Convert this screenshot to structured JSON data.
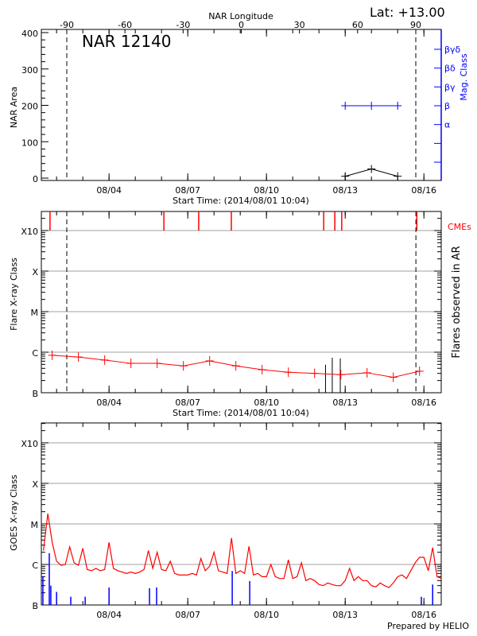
{
  "header": {
    "lat_label": "Lat: +13.00",
    "prepared_by": "Prepared by HELIO"
  },
  "colors": {
    "axis": "#000000",
    "grid": "#a0a0a0",
    "mag_class": "#0000ff",
    "flare_series": "#ff0000",
    "cme": "#ff0000",
    "goes_flux": "#ff0000",
    "goes_events": "#0000ff"
  },
  "chart_data": [
    {
      "type": "line",
      "title": "NAR 12140",
      "top_xlabel": "NAR Longitude",
      "top_xticks": [
        "-90",
        "-60",
        "-30",
        "0",
        "30",
        "60",
        "90"
      ],
      "ylabel": "NAR Area",
      "y2label": "Mag. Class",
      "xlabel": "Start Time: (2014/08/01 10:04)",
      "xlim": [
        "08/01 10:04",
        "08/16 15:50"
      ],
      "xticks": [
        "08/04",
        "08/07",
        "08/10",
        "08/13",
        "08/16"
      ],
      "ylim": [
        0,
        400
      ],
      "yticks": [
        "0",
        "100",
        "200",
        "300",
        "400"
      ],
      "mag_class_ticks": [
        "βγδ",
        "βδ",
        "βγ",
        "β",
        "α",
        "",
        ""
      ],
      "limb_longitudes": [
        -90,
        90
      ],
      "area_series": {
        "times": [
          "08/13 00:00",
          "08/14 00:00",
          "08/15 00:00"
        ],
        "values": [
          5,
          25,
          5
        ]
      },
      "mag_series": {
        "times": [
          "08/13 00:00",
          "08/14 00:00",
          "08/15 00:00"
        ],
        "values": [
          "β",
          "β",
          "β"
        ]
      }
    },
    {
      "type": "line",
      "ylabel": "Flare X-ray Class",
      "y2label": "Flares observed in AR",
      "cme_label": "CMEs",
      "xlabel": "Start Time: (2014/08/01 10:04)",
      "xlim": [
        "08/01 10:04",
        "08/16 15:50"
      ],
      "xticks": [
        "08/04",
        "08/07",
        "08/10",
        "08/13",
        "08/16"
      ],
      "yticks": [
        "B",
        "C",
        "M",
        "X",
        "X10"
      ],
      "grid": true,
      "limb_crossings": [
        "08/02 09:20",
        "08/15 16:40"
      ],
      "background_flux": {
        "times": [
          "08/01 20:00",
          "08/02 20:00",
          "08/03 20:00",
          "08/04 20:00",
          "08/05 20:00",
          "08/06 20:00",
          "08/07 20:00",
          "08/08 20:00",
          "08/09 20:00",
          "08/10 20:00",
          "08/11 20:00",
          "08/12 20:00",
          "08/13 20:00",
          "08/14 20:00",
          "08/15 20:00"
        ],
        "values": [
          "B8.4",
          "B7.6",
          "B6.4",
          "B5.3",
          "B5.3",
          "B4.6",
          "B6.1",
          "B4.6",
          "B3.7",
          "B3.2",
          "B3.0",
          "B2.8",
          "B3.1",
          "B2.4",
          "B3.4"
        ]
      },
      "cmes": [
        "08/01 18:00",
        "08/06 02:10",
        "08/07 10:00",
        "08/08 15:50",
        "08/12 04:20",
        "08/12 14:30",
        "08/12 20:50",
        "08/15 17:30"
      ],
      "flares": [
        {
          "time": "08/12 06:00",
          "class": "B4.9"
        },
        {
          "time": "08/12 12:10",
          "class": "B7.3"
        },
        {
          "time": "08/12 19:30",
          "class": "B7.0"
        }
      ]
    },
    {
      "type": "line",
      "ylabel": "GOES X-ray Class",
      "xlim": [
        "08/01 10:04",
        "08/16 15:50"
      ],
      "xticks": [
        "08/04",
        "08/07",
        "08/10",
        "08/13",
        "08/16"
      ],
      "yticks": [
        "B",
        "C",
        "M",
        "X",
        "X10"
      ],
      "grid": true,
      "flux": {
        "hours": [
          "00:00",
          "04:00",
          "08:00",
          "12:00",
          "16:00",
          "20:00"
        ],
        "days": [
          {
            "date": "08/01",
            "values": [
              null,
              null,
              null,
              "C2.2",
              "M1.8",
              "C3.5"
            ]
          },
          {
            "date": "08/02",
            "values": [
              "C1.2",
              "B9.5",
              "C1.0",
              "C2.7",
              "C1.1",
              "B9.5"
            ]
          },
          {
            "date": "08/03",
            "values": [
              "C2.5",
              "B7.5",
              "B7.0",
              "B8.0",
              "B7.0",
              "B7.5"
            ]
          },
          {
            "date": "08/04",
            "values": [
              "C3.5",
              "B8.0",
              "B7.0",
              "B6.5",
              "B6.0",
              "B6.5"
            ]
          },
          {
            "date": "08/05",
            "values": [
              "B6.0",
              "B6.5",
              "B7.5",
              "C2.2",
              "B8.0",
              "C2.0"
            ]
          },
          {
            "date": "08/06",
            "values": [
              "B7.5",
              "B7.0",
              "C1.2",
              "B6.0",
              "B5.5",
              "B5.5"
            ]
          },
          {
            "date": "08/07",
            "values": [
              "B5.5",
              "B6.0",
              "B5.5",
              "C1.4",
              "B7.0",
              "B9.0"
            ]
          },
          {
            "date": "08/08",
            "values": [
              "C2.0",
              "B7.0",
              "B6.5",
              "B6.0",
              "C4.5",
              "B6.0"
            ]
          },
          {
            "date": "08/09",
            "values": [
              "B7.0",
              "B6.0",
              "C2.8",
              "B5.5",
              "B6.0",
              "B5.0"
            ]
          },
          {
            "date": "08/10",
            "values": [
              "B5.0",
              "C1.0",
              "B5.0",
              "B4.5",
              "B4.5",
              "C1.3"
            ]
          },
          {
            "date": "08/11",
            "values": [
              "B4.5",
              "B5.0",
              "C1.1",
              "B4.0",
              "B4.5",
              "B4.0"
            ]
          },
          {
            "date": "08/12",
            "values": [
              "B3.2",
              "B3.0",
              "B3.5",
              "B3.2",
              "B3.0",
              "B3.0"
            ]
          },
          {
            "date": "08/13",
            "values": [
              "B4.0",
              "B8.0",
              "B4.0",
              "B5.0",
              "B4.0",
              "B4.0"
            ]
          },
          {
            "date": "08/14",
            "values": [
              "B3.0",
              "B2.8",
              "B3.5",
              "B3.0",
              "B2.7",
              "B3.5"
            ]
          },
          {
            "date": "08/15",
            "values": [
              "B5.0",
              "B5.5",
              "B4.5",
              "B7.0",
              "C1.1",
              "C1.5"
            ]
          },
          {
            "date": "08/16",
            "values": [
              "C1.5",
              "B7.0",
              "C2.6",
              "B5.0",
              "B4.5",
              null
            ]
          }
        ]
      },
      "events": [
        {
          "time": "08/01 11:30",
          "class": "B5.0"
        },
        {
          "time": "08/01 17:20",
          "class": "C1.9"
        },
        {
          "time": "08/01 18:45",
          "class": "B3.0"
        },
        {
          "time": "08/02 00:00",
          "class": "B2.1"
        },
        {
          "time": "08/02 13:00",
          "class": "B1.6"
        },
        {
          "time": "08/03 02:10",
          "class": "B1.6"
        },
        {
          "time": "08/04 00:00",
          "class": "B2.7"
        },
        {
          "time": "08/05 13:00",
          "class": "B2.6"
        },
        {
          "time": "08/05 19:30",
          "class": "B2.7"
        },
        {
          "time": "08/08 16:40",
          "class": "B6.9"
        },
        {
          "time": "08/09 08:40",
          "class": "B3.9"
        },
        {
          "time": "08/15 21:40",
          "class": "B1.6"
        },
        {
          "time": "08/16 08:00",
          "class": "B3.2"
        }
      ]
    }
  ]
}
